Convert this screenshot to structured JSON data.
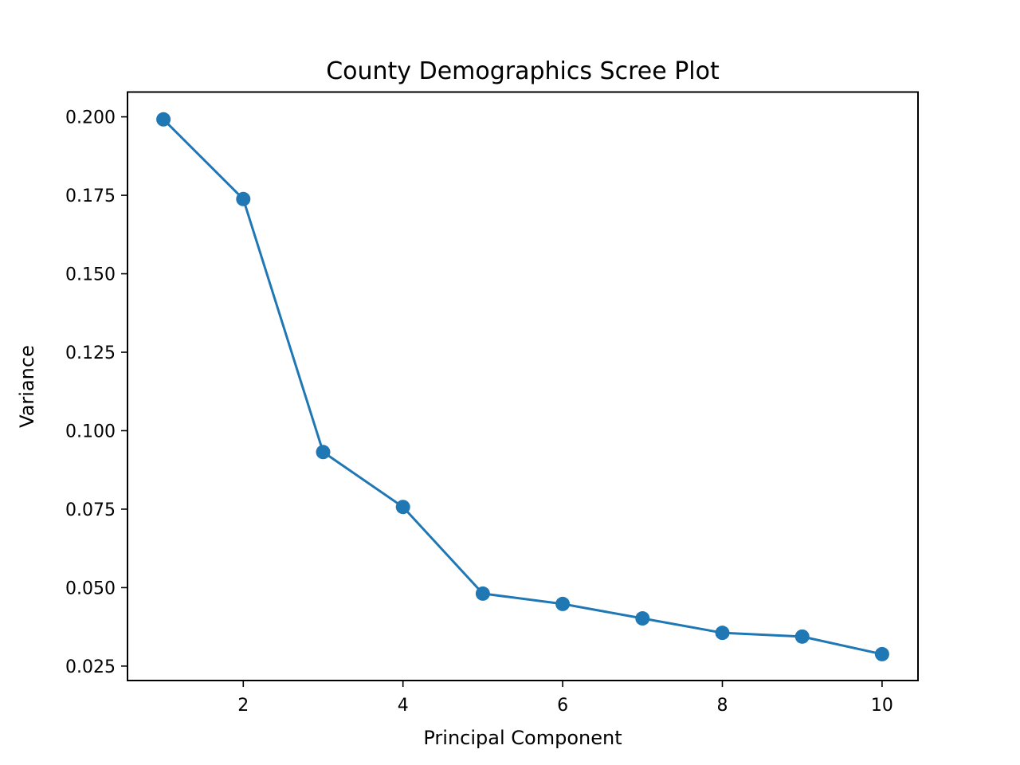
{
  "chart_data": {
    "type": "line",
    "title": "County Demographics Scree Plot",
    "xlabel": "Principal Component",
    "ylabel": "Variance",
    "x": [
      1,
      2,
      3,
      4,
      5,
      6,
      7,
      8,
      9,
      10
    ],
    "series": [
      {
        "values": [
          0.1992,
          0.1738,
          0.0932,
          0.0757,
          0.0481,
          0.0448,
          0.0402,
          0.0356,
          0.0344,
          0.0288
        ],
        "color": "#1f77b4",
        "marker": "circle"
      }
    ],
    "xlim": [
      0.55,
      10.45
    ],
    "ylim": [
      0.0204,
      0.2079
    ],
    "xticks": [
      2,
      4,
      6,
      8,
      10
    ],
    "xtick_labels": [
      "2",
      "4",
      "6",
      "8",
      "10"
    ],
    "yticks": [
      0.025,
      0.05,
      0.075,
      0.1,
      0.125,
      0.15,
      0.175,
      0.2
    ],
    "ytick_labels": [
      "0.025",
      "0.050",
      "0.075",
      "0.100",
      "0.125",
      "0.150",
      "0.175",
      "0.200"
    ],
    "grid": false,
    "legend": "none"
  }
}
